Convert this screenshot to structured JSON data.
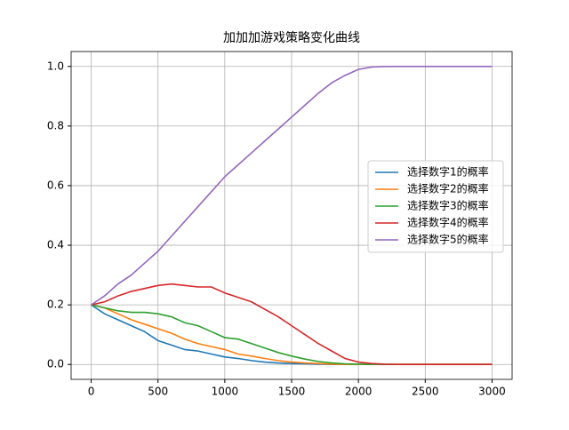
{
  "chart_data": {
    "type": "line",
    "title": "加加加游戏策略变化曲线",
    "x": [
      0,
      100,
      200,
      300,
      400,
      500,
      600,
      700,
      800,
      900,
      1000,
      1100,
      1200,
      1300,
      1400,
      1500,
      1600,
      1700,
      1800,
      1900,
      2000,
      2100,
      2200,
      2300,
      2400,
      2500,
      2600,
      2700,
      2800,
      2900,
      3000
    ],
    "series": [
      {
        "name": "选择数字1的概率",
        "color": "#1f77b4",
        "values": [
          0.2,
          0.17,
          0.15,
          0.13,
          0.11,
          0.08,
          0.065,
          0.05,
          0.045,
          0.035,
          0.025,
          0.02,
          0.013,
          0.008,
          0.005,
          0.003,
          0.002,
          0.001,
          0,
          0,
          0,
          0,
          0,
          0,
          0,
          0,
          0,
          0,
          0,
          0,
          0
        ]
      },
      {
        "name": "选择数字2的概率",
        "color": "#ff7f0e",
        "values": [
          0.2,
          0.19,
          0.17,
          0.15,
          0.135,
          0.12,
          0.105,
          0.085,
          0.07,
          0.06,
          0.05,
          0.035,
          0.028,
          0.02,
          0.013,
          0.008,
          0.005,
          0.003,
          0.001,
          0,
          0,
          0,
          0,
          0,
          0,
          0,
          0,
          0,
          0,
          0,
          0
        ]
      },
      {
        "name": "选择数字3的概率",
        "color": "#2ca02c",
        "values": [
          0.2,
          0.19,
          0.18,
          0.175,
          0.175,
          0.17,
          0.16,
          0.14,
          0.13,
          0.11,
          0.09,
          0.085,
          0.07,
          0.055,
          0.04,
          0.028,
          0.018,
          0.01,
          0.005,
          0.002,
          0.001,
          0,
          0,
          0,
          0,
          0,
          0,
          0,
          0,
          0,
          0
        ]
      },
      {
        "name": "选择数字4的概率",
        "color": "#d62728",
        "values": [
          0.2,
          0.21,
          0.23,
          0.245,
          0.255,
          0.265,
          0.27,
          0.265,
          0.26,
          0.26,
          0.24,
          0.225,
          0.21,
          0.185,
          0.16,
          0.13,
          0.1,
          0.07,
          0.045,
          0.02,
          0.008,
          0.003,
          0.001,
          0,
          0,
          0,
          0,
          0,
          0,
          0,
          0
        ]
      },
      {
        "name": "选择数字5的概率",
        "color": "#9467bd",
        "values": [
          0.2,
          0.23,
          0.27,
          0.3,
          0.34,
          0.38,
          0.43,
          0.48,
          0.53,
          0.58,
          0.63,
          0.67,
          0.71,
          0.75,
          0.79,
          0.83,
          0.87,
          0.91,
          0.945,
          0.97,
          0.99,
          0.998,
          1,
          1,
          1,
          1,
          1,
          1,
          1,
          1,
          1
        ]
      }
    ],
    "xlim": [
      -150,
      3150
    ],
    "xticks": [
      0,
      500,
      1000,
      1500,
      2000,
      2500,
      3000
    ],
    "ylim": [
      -0.05,
      1.05
    ],
    "yticks": [
      {
        "value": 0,
        "label": "0.0"
      },
      0.2,
      0.4,
      0.6,
      0.8,
      {
        "value": 1,
        "label": "1.0"
      }
    ],
    "grid": true,
    "legend": "center right"
  }
}
